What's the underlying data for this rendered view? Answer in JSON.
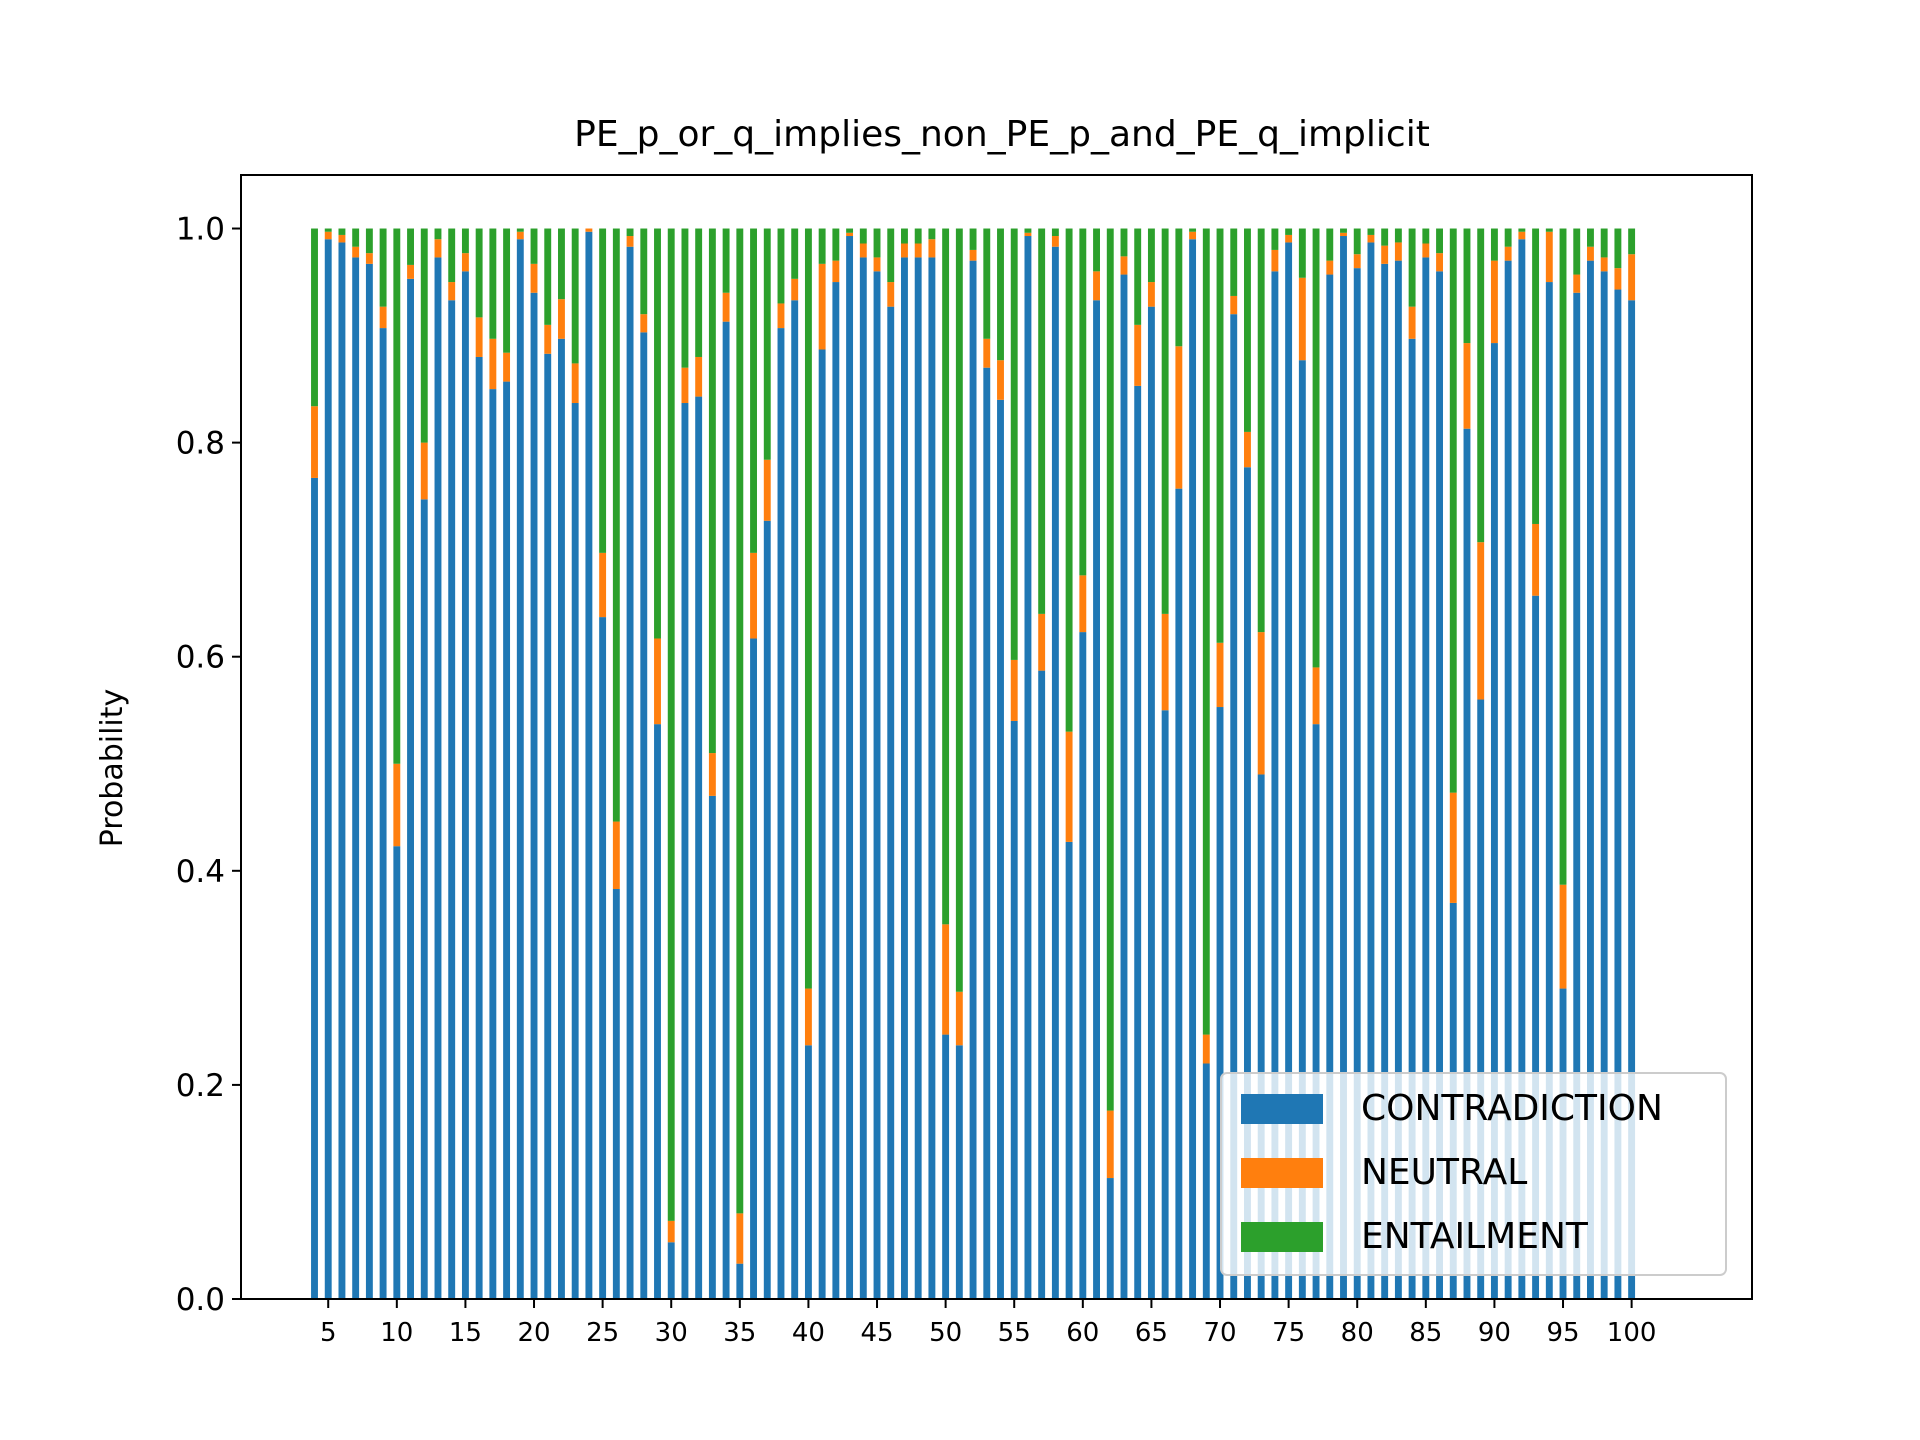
{
  "chart_data": {
    "type": "bar",
    "stacked": true,
    "title": "PE_p_or_q_implies_non_PE_p_and_PE_q_implicit",
    "xlabel": "",
    "ylabel": "Probability",
    "ylim": [
      0,
      1.05
    ],
    "yticks": [
      "0.0",
      "0.2",
      "0.4",
      "0.6",
      "0.8",
      "1.0"
    ],
    "xticks": [
      "5",
      "10",
      "15",
      "20",
      "25",
      "30",
      "35",
      "40",
      "45",
      "50",
      "55",
      "60",
      "65",
      "70",
      "75",
      "80",
      "85",
      "90",
      "95",
      "100"
    ],
    "legend_position": "lower-right",
    "grid": false,
    "colors": {
      "CONTRADICTION": "#1f77b4",
      "NEUTRAL": "#ff7f0e",
      "ENTAILMENT": "#2ca02c"
    },
    "series": [
      {
        "name": "CONTRADICTION",
        "values": [
          0.767,
          0.99,
          0.987,
          0.973,
          0.967,
          0.907,
          0.423,
          0.953,
          0.747,
          0.973,
          0.933,
          0.96,
          0.88,
          0.85,
          0.857,
          0.99,
          0.94,
          0.883,
          0.897,
          0.837,
          0.997,
          0.637,
          0.383,
          0.983,
          0.903,
          0.537,
          0.053,
          0.837,
          0.843,
          0.47,
          0.913,
          0.033,
          0.617,
          0.727,
          0.907,
          0.933,
          0.237,
          0.887,
          0.95,
          0.993,
          0.973,
          0.96,
          0.927,
          0.973,
          0.973,
          0.973,
          0.247,
          0.237,
          0.97,
          0.87,
          0.84,
          0.54,
          0.993,
          0.587,
          0.983,
          0.427,
          0.623,
          0.933,
          0.113,
          0.957,
          0.853,
          0.927,
          0.55,
          0.757,
          0.99,
          0.22,
          0.553,
          0.92,
          0.777,
          0.49,
          0.96,
          0.987,
          0.877,
          0.537,
          0.957,
          0.993,
          0.963,
          0.987,
          0.967,
          0.97,
          0.897,
          0.973,
          0.96,
          0.37,
          0.813,
          0.56,
          0.893,
          0.97,
          0.99,
          0.657,
          0.95,
          0.29,
          0.94,
          0.97,
          0.96,
          0.943,
          0.933
        ],
        "stacked_top": true
      },
      {
        "name": "NEUTRAL",
        "values": [
          0.067,
          0.007,
          0.007,
          0.01,
          0.01,
          0.02,
          0.077,
          0.013,
          0.053,
          0.017,
          0.017,
          0.017,
          0.037,
          0.047,
          0.027,
          0.007,
          0.027,
          0.027,
          0.037,
          0.037,
          0.003,
          0.06,
          0.063,
          0.01,
          0.017,
          0.08,
          0.02,
          0.033,
          0.037,
          0.04,
          0.027,
          0.047,
          0.08,
          0.057,
          0.023,
          0.02,
          0.053,
          0.08,
          0.02,
          0.003,
          0.013,
          0.013,
          0.023,
          0.013,
          0.013,
          0.017,
          0.103,
          0.05,
          0.01,
          0.027,
          0.037,
          0.057,
          0.003,
          0.053,
          0.01,
          0.103,
          0.053,
          0.027,
          0.063,
          0.017,
          0.057,
          0.023,
          0.09,
          0.133,
          0.007,
          0.027,
          0.06,
          0.017,
          0.033,
          0.133,
          0.02,
          0.007,
          0.077,
          0.053,
          0.013,
          0.003,
          0.013,
          0.007,
          0.017,
          0.017,
          0.03,
          0.013,
          0.017,
          0.103,
          0.08,
          0.147,
          0.077,
          0.013,
          0.007,
          0.067,
          0.047,
          0.097,
          0.017,
          0.013,
          0.013,
          0.02,
          0.043
        ]
      },
      {
        "name": "ENTAILMENT",
        "values": [
          0.166,
          0.003,
          0.006,
          0.017,
          0.023,
          0.073,
          0.5,
          0.034,
          0.2,
          0.01,
          0.05,
          0.023,
          0.083,
          0.103,
          0.116,
          0.003,
          0.033,
          0.09,
          0.066,
          0.126,
          0.0,
          0.303,
          0.554,
          0.007,
          0.08,
          0.383,
          0.927,
          0.13,
          0.12,
          0.49,
          0.06,
          0.92,
          0.303,
          0.216,
          0.07,
          0.047,
          0.71,
          0.033,
          0.03,
          0.004,
          0.014,
          0.027,
          0.05,
          0.014,
          0.014,
          0.01,
          0.65,
          0.713,
          0.02,
          0.103,
          0.123,
          0.403,
          0.004,
          0.36,
          0.007,
          0.47,
          0.324,
          0.04,
          0.824,
          0.026,
          0.09,
          0.05,
          0.36,
          0.11,
          0.003,
          0.753,
          0.387,
          0.063,
          0.19,
          0.377,
          0.02,
          0.006,
          0.046,
          0.41,
          0.03,
          0.004,
          0.024,
          0.006,
          0.016,
          0.013,
          0.073,
          0.014,
          0.023,
          0.527,
          0.107,
          0.293,
          0.03,
          0.017,
          0.003,
          0.276,
          0.003,
          0.613,
          0.043,
          0.017,
          0.027,
          0.037,
          0.024
        ]
      }
    ]
  }
}
